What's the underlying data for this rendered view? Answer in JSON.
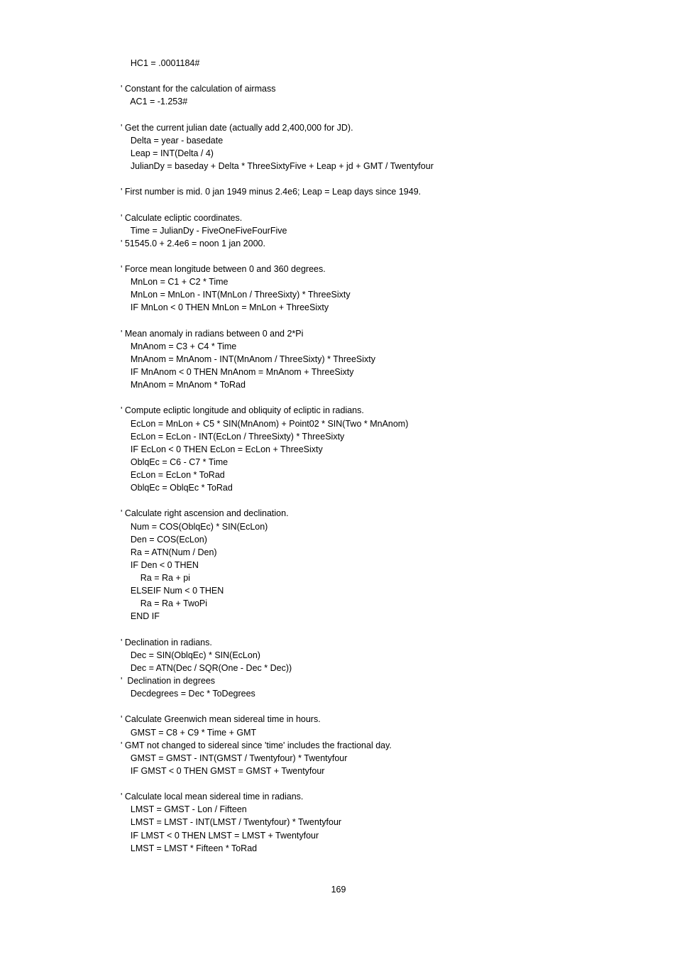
{
  "page_number": "169",
  "typography": {
    "font_family": "Arial, Helvetica, sans-serif",
    "font_size_pt": 9.5,
    "line_height": 1.45,
    "text_color": "#000000",
    "background_color": "#ffffff"
  },
  "indent": {
    "level0": "",
    "level1": "    ",
    "level2": "        "
  },
  "code_lines": [
    {
      "i": 1,
      "t": "HC1 = .0001184#"
    },
    {
      "i": 0,
      "t": ""
    },
    {
      "i": 0,
      "t": "' Constant for the calculation of airmass"
    },
    {
      "i": 1,
      "t": "AC1 = -1.253#"
    },
    {
      "i": 0,
      "t": ""
    },
    {
      "i": 0,
      "t": "' Get the current julian date (actually add 2,400,000 for JD)."
    },
    {
      "i": 1,
      "t": "Delta = year - basedate"
    },
    {
      "i": 1,
      "t": "Leap = INT(Delta / 4)"
    },
    {
      "i": 1,
      "t": "JulianDy = baseday + Delta * ThreeSixtyFive + Leap + jd + GMT / Twentyfour"
    },
    {
      "i": 0,
      "t": ""
    },
    {
      "i": 0,
      "t": "' First number is mid. 0 jan 1949 minus 2.4e6; Leap = Leap days since 1949."
    },
    {
      "i": 0,
      "t": ""
    },
    {
      "i": 0,
      "t": "' Calculate ecliptic coordinates."
    },
    {
      "i": 1,
      "t": "Time = JulianDy - FiveOneFiveFourFive"
    },
    {
      "i": 0,
      "t": "' 51545.0 + 2.4e6 = noon 1 jan 2000."
    },
    {
      "i": 0,
      "t": ""
    },
    {
      "i": 0,
      "t": "' Force mean longitude between 0 and 360 degrees."
    },
    {
      "i": 1,
      "t": "MnLon = C1 + C2 * Time"
    },
    {
      "i": 1,
      "t": "MnLon = MnLon - INT(MnLon / ThreeSixty) * ThreeSixty"
    },
    {
      "i": 1,
      "t": "IF MnLon < 0 THEN MnLon = MnLon + ThreeSixty"
    },
    {
      "i": 0,
      "t": ""
    },
    {
      "i": 0,
      "t": "' Mean anomaly in radians between 0 and 2*Pi"
    },
    {
      "i": 1,
      "t": "MnAnom = C3 + C4 * Time"
    },
    {
      "i": 1,
      "t": "MnAnom = MnAnom - INT(MnAnom / ThreeSixty) * ThreeSixty"
    },
    {
      "i": 1,
      "t": "IF MnAnom < 0 THEN MnAnom = MnAnom + ThreeSixty"
    },
    {
      "i": 1,
      "t": "MnAnom = MnAnom * ToRad"
    },
    {
      "i": 0,
      "t": ""
    },
    {
      "i": 0,
      "t": "' Compute ecliptic longitude and obliquity of ecliptic in radians."
    },
    {
      "i": 1,
      "t": "EcLon = MnLon + C5 * SIN(MnAnom) + Point02 * SIN(Two * MnAnom)"
    },
    {
      "i": 1,
      "t": "EcLon = EcLon - INT(EcLon / ThreeSixty) * ThreeSixty"
    },
    {
      "i": 1,
      "t": "IF EcLon < 0 THEN EcLon = EcLon + ThreeSixty"
    },
    {
      "i": 1,
      "t": "OblqEc = C6 - C7 * Time"
    },
    {
      "i": 1,
      "t": "EcLon = EcLon * ToRad"
    },
    {
      "i": 1,
      "t": "OblqEc = OblqEc * ToRad"
    },
    {
      "i": 0,
      "t": ""
    },
    {
      "i": 0,
      "t": "' Calculate right ascension and declination."
    },
    {
      "i": 1,
      "t": "Num = COS(OblqEc) * SIN(EcLon)"
    },
    {
      "i": 1,
      "t": "Den = COS(EcLon)"
    },
    {
      "i": 1,
      "t": "Ra = ATN(Num / Den)"
    },
    {
      "i": 1,
      "t": "IF Den < 0 THEN"
    },
    {
      "i": 2,
      "t": "Ra = Ra + pi"
    },
    {
      "i": 1,
      "t": "ELSEIF Num < 0 THEN"
    },
    {
      "i": 2,
      "t": "Ra = Ra + TwoPi"
    },
    {
      "i": 1,
      "t": "END IF"
    },
    {
      "i": 0,
      "t": ""
    },
    {
      "i": 0,
      "t": "' Declination in radians."
    },
    {
      "i": 1,
      "t": "Dec = SIN(OblqEc) * SIN(EcLon)"
    },
    {
      "i": 1,
      "t": "Dec = ATN(Dec / SQR(One - Dec * Dec))"
    },
    {
      "i": 0,
      "t": "'  Declination in degrees"
    },
    {
      "i": 1,
      "t": "Decdegrees = Dec * ToDegrees"
    },
    {
      "i": 0,
      "t": ""
    },
    {
      "i": 0,
      "t": "' Calculate Greenwich mean sidereal time in hours."
    },
    {
      "i": 1,
      "t": "GMST = C8 + C9 * Time + GMT"
    },
    {
      "i": 0,
      "t": "' GMT not changed to sidereal since 'time' includes the fractional day."
    },
    {
      "i": 1,
      "t": "GMST = GMST - INT(GMST / Twentyfour) * Twentyfour"
    },
    {
      "i": 1,
      "t": "IF GMST < 0 THEN GMST = GMST + Twentyfour"
    },
    {
      "i": 0,
      "t": ""
    },
    {
      "i": 0,
      "t": "' Calculate local mean sidereal time in radians."
    },
    {
      "i": 1,
      "t": "LMST = GMST - Lon / Fifteen"
    },
    {
      "i": 1,
      "t": "LMST = LMST - INT(LMST / Twentyfour) * Twentyfour"
    },
    {
      "i": 1,
      "t": "IF LMST < 0 THEN LMST = LMST + Twentyfour"
    },
    {
      "i": 1,
      "t": "LMST = LMST * Fifteen * ToRad"
    }
  ]
}
